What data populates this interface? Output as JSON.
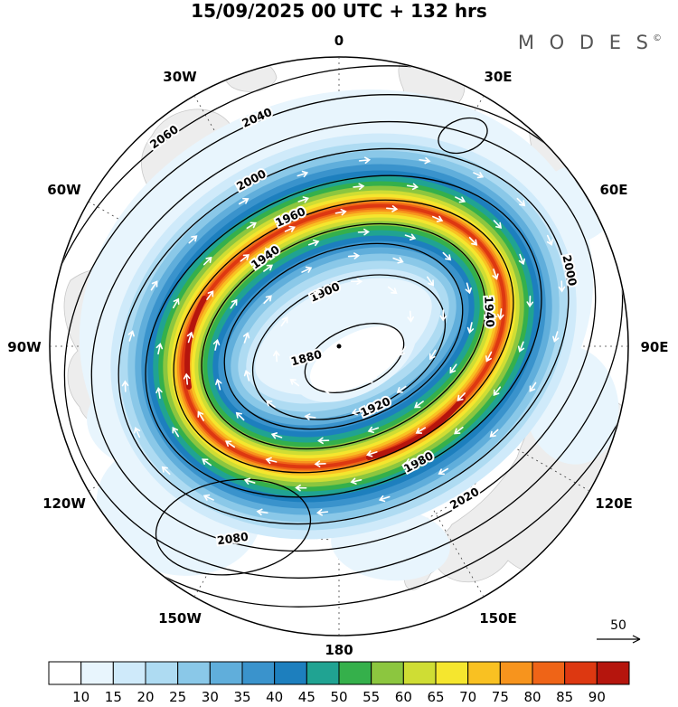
{
  "header": {
    "title": "15/09/2025  00 UTC  + 132 hrs",
    "brand": "M O D E S",
    "brand_mark": "©"
  },
  "chart_data": {
    "type": "heatmap",
    "projection": "polar-stereographic",
    "title": "15/09/2025 00 UTC + 132 hrs",
    "longitude_labels": [
      "0",
      "30E",
      "60E",
      "90E",
      "120E",
      "150E",
      "180",
      "150W",
      "120W",
      "90W",
      "60W",
      "30W"
    ],
    "contour_levels": [
      1880,
      1900,
      1920,
      1940,
      1960,
      1980,
      2000,
      2020,
      2040,
      2060,
      2080
    ],
    "contour_interval": 20,
    "colorbar": {
      "orientation": "horizontal",
      "ticks": [
        10,
        15,
        20,
        25,
        30,
        35,
        40,
        45,
        50,
        55,
        60,
        65,
        70,
        75,
        80,
        85,
        90
      ],
      "colors": [
        "#ffffff",
        "#e8f5fd",
        "#cfeafa",
        "#aedbf2",
        "#8ac8e8",
        "#60aedb",
        "#3a93cc",
        "#1d7fbe",
        "#20a392",
        "#35b04b",
        "#8cc63f",
        "#cfdd34",
        "#f5e62e",
        "#f9c122",
        "#f7941d",
        "#ef6417",
        "#dd3811",
        "#b5150d"
      ]
    },
    "reference_arrow_value": "50",
    "structure": {
      "vortex_minimum_contour": 1880,
      "outermost_labeled_contour": 2080,
      "shading_description": "elliptical ring of high wind speed (85-90+) surrounding a calm center offset from the pole"
    }
  },
  "map": {
    "contour_labels": [
      "1880",
      "1900",
      "1920",
      "1940",
      "1960",
      "1980",
      "2000",
      "2020",
      "2040",
      "2060",
      "2080",
      "1940",
      "2000"
    ]
  }
}
